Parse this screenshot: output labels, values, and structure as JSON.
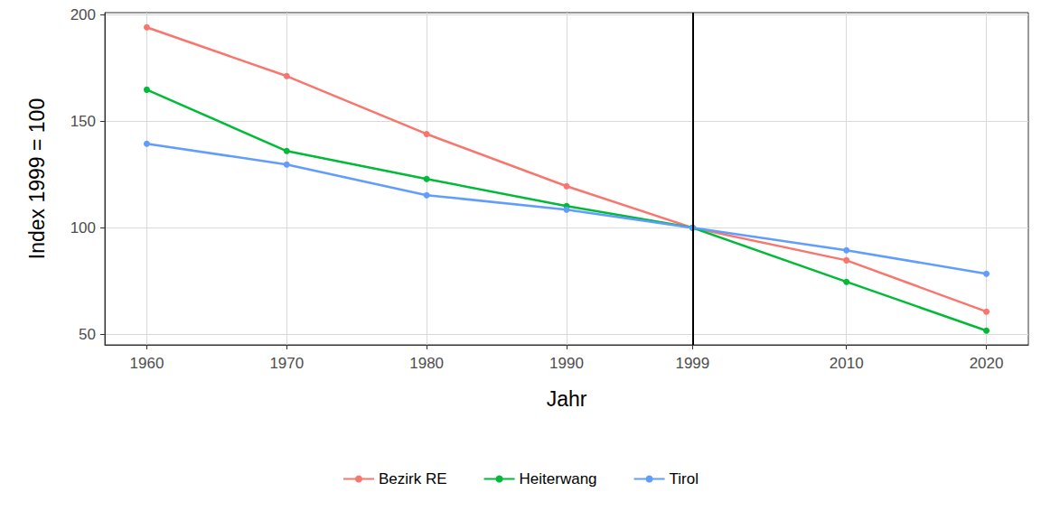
{
  "chart_data": {
    "type": "line",
    "x_label": "Jahr",
    "y_label": "Index 1999 = 100",
    "x": [
      1960,
      1970,
      1980,
      1990,
      1999,
      2010,
      2020
    ],
    "series": [
      {
        "name": "Bezirk RE",
        "color": "#F8766D",
        "values": [
          194.1,
          171.2,
          144.0,
          119.5,
          100,
          84.7,
          60.6
        ]
      },
      {
        "name": "Heiterwang",
        "color": "#00BA38",
        "values": [
          164.8,
          136.0,
          122.9,
          110.2,
          100,
          74.6,
          51.7
        ]
      },
      {
        "name": "Tirol",
        "color": "#619CFF",
        "values": [
          139.4,
          129.7,
          115.3,
          108.5,
          100,
          89.4,
          78.4
        ]
      }
    ],
    "xlim": [
      1957,
      2023
    ],
    "xticks": [
      1960,
      1970,
      1980,
      1990,
      1999,
      2010,
      2020
    ],
    "ylim": [
      45,
      201
    ],
    "yticks": [
      50,
      100,
      150,
      200
    ],
    "vline": 1999,
    "grid": true,
    "legend": "bottom",
    "marker": "circle"
  }
}
